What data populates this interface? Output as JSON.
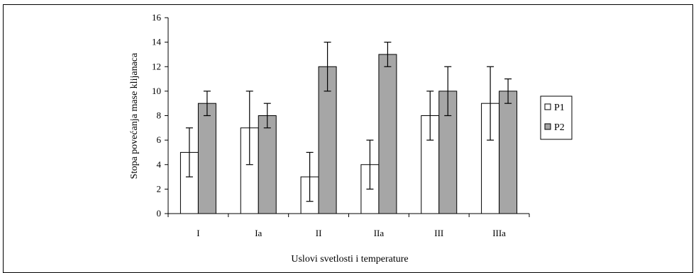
{
  "chart_data": {
    "type": "bar",
    "categories": [
      "I",
      "Ia",
      "II",
      "IIa",
      "III",
      "IIIa"
    ],
    "series": [
      {
        "name": "P1",
        "color": "#ffffff",
        "values": [
          5,
          7,
          3,
          4,
          8,
          9
        ],
        "error_low": [
          3,
          4,
          1,
          2,
          6,
          6
        ],
        "error_high": [
          7,
          10,
          5,
          6,
          10,
          12
        ]
      },
      {
        "name": "P2",
        "color": "#a6a6a6",
        "values": [
          9,
          8,
          12,
          13,
          10,
          10
        ],
        "error_low": [
          8,
          7,
          10,
          12,
          8,
          9
        ],
        "error_high": [
          10,
          9,
          14,
          14,
          12,
          11
        ]
      }
    ],
    "xlabel": "Uslovi svetlosti i temperature",
    "ylabel": "Stopa povećanja mase klijanaca",
    "ylim": [
      0,
      16
    ],
    "yticks": [
      0,
      2,
      4,
      6,
      8,
      10,
      12,
      14,
      16
    ],
    "grid": false,
    "legend": "right"
  }
}
